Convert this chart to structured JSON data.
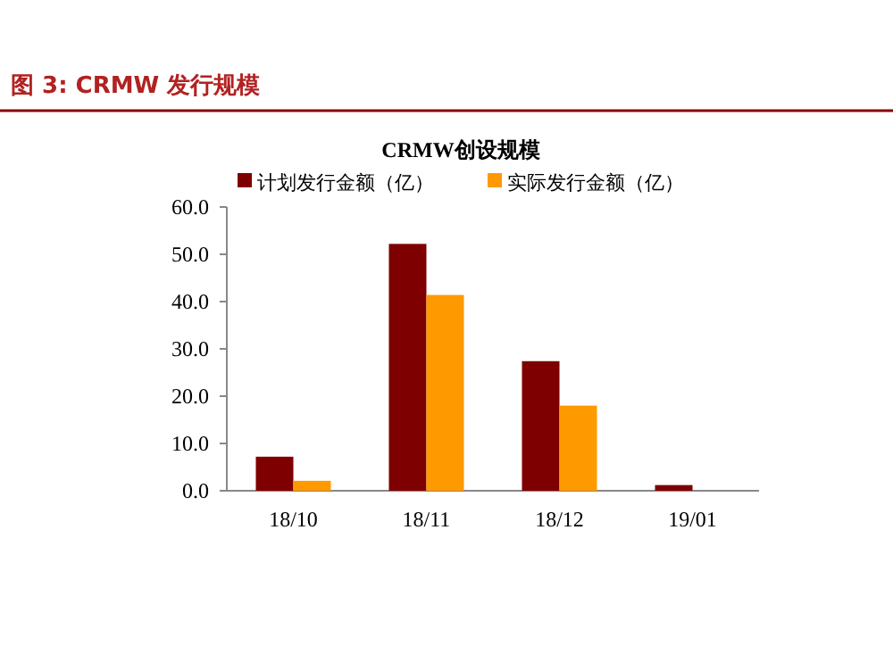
{
  "chart_data": {
    "type": "bar",
    "title": "图 3: CRMW 发行规模",
    "subtitle": "CRMW创设规模",
    "categories": [
      "18/10",
      "18/11",
      "18/12",
      "19/01"
    ],
    "series": [
      {
        "name": "计划发行金额（亿）",
        "color": "#7f0000",
        "values": [
          7.2,
          52.2,
          27.4,
          1.2
        ]
      },
      {
        "name": "实际发行金额（亿）",
        "color": "#ff9900",
        "values": [
          2.1,
          41.4,
          18.0,
          null
        ]
      }
    ],
    "ylim": [
      0,
      60
    ],
    "yticks": [
      {
        "value": 0,
        "label": "0.0"
      },
      {
        "value": 10,
        "label": "10.0"
      },
      {
        "value": 20,
        "label": "20.0"
      },
      {
        "value": 30,
        "label": "30.0"
      },
      {
        "value": 40,
        "label": "40.0"
      },
      {
        "value": 50,
        "label": "50.0"
      },
      {
        "value": 60,
        "label": "60.0"
      }
    ],
    "grid": false,
    "legend": "top"
  }
}
